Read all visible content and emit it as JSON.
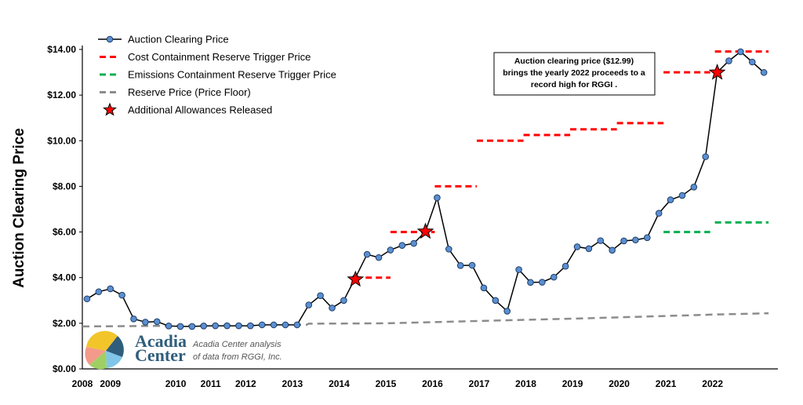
{
  "chart_data": {
    "type": "line",
    "title": "",
    "xlabel": "",
    "ylabel": "Auction Clearing Price",
    "ylim": [
      0,
      14
    ],
    "y_ticks": [
      "$0.00",
      "$2.00",
      "$4.00",
      "$6.00",
      "$8.00",
      "$10.00",
      "$12.00",
      "$14.00"
    ],
    "y_tick_values": [
      0,
      2,
      4,
      6,
      8,
      10,
      12,
      14
    ],
    "xlim": [
      2008.0,
      2022.9
    ],
    "x_ticks": [
      {
        "label": "2008",
        "x": 2008.0
      },
      {
        "label": "2009",
        "x": 2008.6
      },
      {
        "label": "2010",
        "x": 2010.0
      },
      {
        "label": "2011",
        "x": 2010.75
      },
      {
        "label": "2012",
        "x": 2011.5
      },
      {
        "label": "2013",
        "x": 2012.5
      },
      {
        "label": "2014",
        "x": 2013.5
      },
      {
        "label": "2015",
        "x": 2014.5
      },
      {
        "label": "2016",
        "x": 2015.5
      },
      {
        "label": "2017",
        "x": 2016.5
      },
      {
        "label": "2018",
        "x": 2017.5
      },
      {
        "label": "2019",
        "x": 2018.5
      },
      {
        "label": "2020",
        "x": 2019.5
      },
      {
        "label": "2021",
        "x": 2020.5
      },
      {
        "label": "2022",
        "x": 2021.5
      }
    ],
    "legend_position": "top-left",
    "grid": false,
    "series": [
      {
        "name": "Auction Clearing Price",
        "style": "line-markers",
        "color": "#000000",
        "marker_color": "#5b8fd1",
        "points": [
          [
            2008.1,
            3.07
          ],
          [
            2008.35,
            3.38
          ],
          [
            2008.6,
            3.51
          ],
          [
            2008.85,
            3.23
          ],
          [
            2009.1,
            2.19
          ],
          [
            2009.35,
            2.05
          ],
          [
            2009.6,
            2.07
          ],
          [
            2009.85,
            1.88
          ],
          [
            2010.1,
            1.86
          ],
          [
            2010.35,
            1.86
          ],
          [
            2010.6,
            1.88
          ],
          [
            2010.85,
            1.89
          ],
          [
            2011.1,
            1.89
          ],
          [
            2011.35,
            1.89
          ],
          [
            2011.6,
            1.89
          ],
          [
            2011.85,
            1.93
          ],
          [
            2012.1,
            1.93
          ],
          [
            2012.35,
            1.93
          ],
          [
            2012.6,
            1.93
          ],
          [
            2012.85,
            2.8
          ],
          [
            2013.1,
            3.21
          ],
          [
            2013.35,
            2.67
          ],
          [
            2013.6,
            3.0
          ],
          [
            2013.85,
            4.0
          ],
          [
            2014.1,
            5.02
          ],
          [
            2014.35,
            4.88
          ],
          [
            2014.6,
            5.21
          ],
          [
            2014.85,
            5.41
          ],
          [
            2015.1,
            5.5
          ],
          [
            2015.35,
            6.02
          ],
          [
            2015.6,
            7.5
          ],
          [
            2015.85,
            5.25
          ],
          [
            2016.1,
            4.53
          ],
          [
            2016.35,
            4.54
          ],
          [
            2016.6,
            3.55
          ],
          [
            2016.85,
            3.0
          ],
          [
            2017.1,
            2.53
          ],
          [
            2017.35,
            4.35
          ],
          [
            2017.6,
            3.79
          ],
          [
            2017.85,
            3.8
          ],
          [
            2018.1,
            4.02
          ],
          [
            2018.35,
            4.5
          ],
          [
            2018.6,
            5.35
          ],
          [
            2018.85,
            5.27
          ],
          [
            2019.1,
            5.62
          ],
          [
            2019.35,
            5.2
          ],
          [
            2019.6,
            5.61
          ],
          [
            2019.85,
            5.65
          ],
          [
            2020.1,
            5.75
          ],
          [
            2020.35,
            6.82
          ],
          [
            2020.6,
            7.41
          ],
          [
            2020.85,
            7.6
          ],
          [
            2021.1,
            7.97
          ],
          [
            2021.35,
            9.3
          ],
          [
            2021.6,
            13.0
          ],
          [
            2021.85,
            13.5
          ],
          [
            2022.1,
            13.9
          ],
          [
            2022.35,
            13.45
          ],
          [
            2022.6,
            12.99
          ]
        ]
      },
      {
        "name": "Cost Containment Reserve Trigger Price",
        "style": "dashed-segments",
        "color": "#ff0000",
        "segments": [
          {
            "x": [
              2013.85,
              2014.6
            ],
            "y": 4.0
          },
          {
            "x": [
              2014.6,
              2015.55
            ],
            "y": 6.0
          },
          {
            "x": [
              2015.55,
              2016.45
            ],
            "y": 8.0
          },
          {
            "x": [
              2016.45,
              2017.45
            ],
            "y": 10.0
          },
          {
            "x": [
              2017.45,
              2018.45
            ],
            "y": 10.25
          },
          {
            "x": [
              2018.45,
              2019.45
            ],
            "y": 10.5
          },
          {
            "x": [
              2019.45,
              2020.45
            ],
            "y": 10.77
          },
          {
            "x": [
              2020.45,
              2021.45
            ],
            "y": 13.0
          },
          {
            "x": [
              2021.55,
              2022.7
            ],
            "y": 13.91
          }
        ]
      },
      {
        "name": "Emissions Containment Reserve Trigger Price",
        "style": "dashed-segments",
        "color": "#00b050",
        "segments": [
          {
            "x": [
              2020.45,
              2021.45
            ],
            "y": 6.0
          },
          {
            "x": [
              2021.55,
              2022.7
            ],
            "y": 6.42
          }
        ]
      },
      {
        "name": "Reserve Price (Price Floor)",
        "style": "dashed-line",
        "color": "#8c8c8c",
        "points": [
          [
            2008.0,
            1.86
          ],
          [
            2012.8,
            1.93
          ],
          [
            2012.85,
            1.98
          ],
          [
            2014.5,
            2.0
          ],
          [
            2015.5,
            2.05
          ],
          [
            2016.5,
            2.1
          ],
          [
            2017.5,
            2.15
          ],
          [
            2018.5,
            2.2
          ],
          [
            2019.5,
            2.26
          ],
          [
            2020.5,
            2.32
          ],
          [
            2021.5,
            2.38
          ],
          [
            2022.7,
            2.44
          ]
        ]
      },
      {
        "name": "Additional Allowances Released",
        "style": "stars",
        "color": "#ff0000",
        "points": [
          [
            2013.85,
            3.92
          ],
          [
            2015.35,
            6.02
          ],
          [
            2021.6,
            12.99
          ]
        ]
      }
    ],
    "annotations": [
      {
        "lines": [
          "Auction clearing price ($12.99)",
          "brings the yearly 2022  proceeds to a",
          "record high for RGGI ."
        ]
      }
    ]
  },
  "logo": {
    "name_line1": "Acadia",
    "name_line2": "Center",
    "credit_line1": "Acadia Center analysis",
    "credit_line2": "of data from RGGI, Inc."
  }
}
